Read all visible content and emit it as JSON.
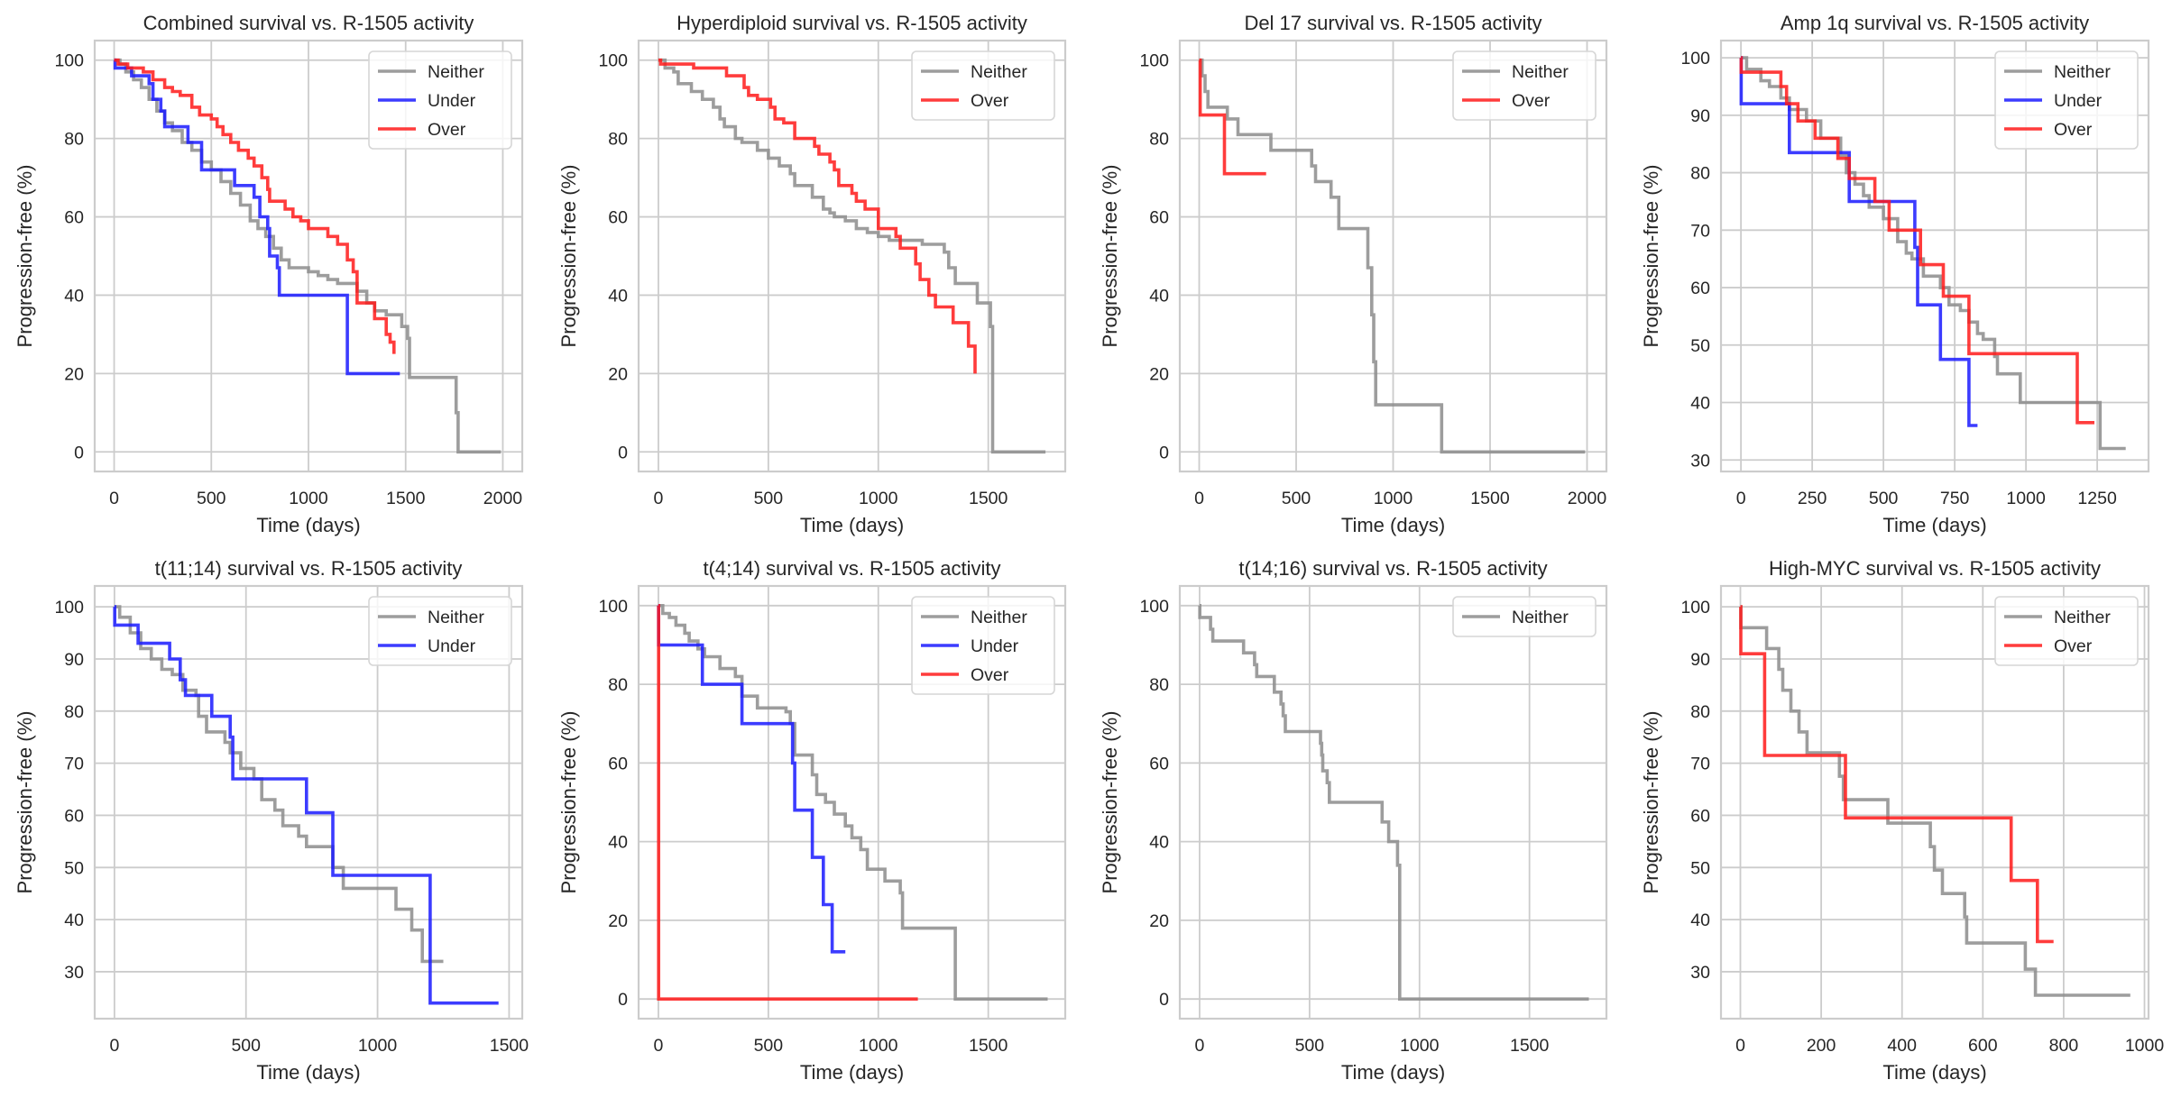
{
  "chart_data": [
    {
      "type": "line",
      "title": "Combined survival vs. R-1505 activity",
      "xlabel": "Time (days)",
      "ylabel": "Progression-free (%)",
      "xlim": [
        -100,
        2100
      ],
      "ylim": [
        -5,
        105
      ],
      "xticks": [
        0,
        500,
        1000,
        1500,
        2000
      ],
      "yticks": [
        0,
        20,
        40,
        60,
        80,
        100
      ],
      "grid": true,
      "legend": "top-right",
      "series": [
        {
          "name": "Neither",
          "color": "#8c8c8c",
          "x": [
            0,
            30,
            60,
            100,
            140,
            180,
            220,
            260,
            300,
            350,
            400,
            450,
            500,
            550,
            600,
            650,
            700,
            740,
            780,
            820,
            860,
            900,
            950,
            1000,
            1050,
            1100,
            1150,
            1200,
            1250,
            1300,
            1340,
            1400,
            1420,
            1480,
            1500,
            1510,
            1520,
            1750,
            1760,
            1770,
            1990
          ],
          "y": [
            100,
            99,
            97,
            95,
            93,
            90,
            87,
            84,
            82,
            79,
            77,
            74,
            72,
            69,
            66,
            63,
            59,
            57,
            55,
            52,
            49,
            47,
            47,
            46,
            45,
            44,
            43,
            43,
            41,
            38,
            36,
            35,
            35,
            32,
            32,
            29,
            19,
            19,
            10,
            0,
            0
          ]
        },
        {
          "name": "Under",
          "color": "#1a1aff",
          "x": [
            0,
            5,
            90,
            180,
            200,
            240,
            260,
            370,
            380,
            440,
            450,
            610,
            620,
            710,
            720,
            750,
            790,
            800,
            840,
            850,
            1190,
            1200,
            1470
          ],
          "y": [
            100,
            98,
            96,
            94,
            90,
            87,
            83,
            83,
            79,
            79,
            72,
            72,
            68,
            68,
            65,
            60,
            57,
            50,
            47,
            40,
            40,
            20,
            20
          ]
        },
        {
          "name": "Over",
          "color": "#ff1a1a",
          "x": [
            0,
            20,
            70,
            150,
            200,
            260,
            300,
            340,
            400,
            440,
            500,
            530,
            560,
            600,
            640,
            690,
            720,
            760,
            790,
            800,
            880,
            920,
            960,
            1000,
            1100,
            1150,
            1200,
            1230,
            1250,
            1340,
            1400,
            1420,
            1440
          ],
          "y": [
            100,
            99,
            98,
            97,
            95,
            93,
            92,
            91,
            88,
            86,
            85,
            83,
            81,
            79,
            77,
            75,
            73,
            70,
            67,
            64,
            62,
            60,
            59,
            57,
            55,
            53,
            49,
            46,
            38,
            34,
            30,
            28,
            25
          ]
        }
      ]
    },
    {
      "type": "line",
      "title": "Hyperdiploid survival vs. R-1505 activity",
      "xlabel": "Time (days)",
      "ylabel": "Progression-free (%)",
      "xlim": [
        -90,
        1850
      ],
      "ylim": [
        -5,
        105
      ],
      "xticks": [
        0,
        500,
        1000,
        1500
      ],
      "yticks": [
        0,
        20,
        40,
        60,
        80,
        100
      ],
      "grid": true,
      "legend": "top-right",
      "series": [
        {
          "name": "Neither",
          "color": "#8c8c8c",
          "x": [
            0,
            30,
            70,
            90,
            150,
            200,
            250,
            280,
            300,
            350,
            380,
            400,
            450,
            500,
            550,
            600,
            620,
            650,
            700,
            750,
            780,
            800,
            850,
            900,
            950,
            1000,
            1050,
            1100,
            1200,
            1300,
            1320,
            1350,
            1420,
            1450,
            1500,
            1510,
            1520,
            1760
          ],
          "y": [
            100,
            98,
            97,
            94,
            92,
            90,
            88,
            85,
            83,
            80,
            79,
            79,
            77,
            75,
            73,
            71,
            68,
            68,
            65,
            62,
            61,
            60,
            59,
            57,
            56,
            55,
            54,
            54,
            53,
            51,
            47,
            43,
            43,
            38,
            38,
            32,
            0,
            0
          ]
        },
        {
          "name": "Over",
          "color": "#ff1a1a",
          "x": [
            0,
            10,
            160,
            290,
            310,
            390,
            410,
            450,
            500,
            510,
            530,
            570,
            620,
            700,
            710,
            730,
            780,
            800,
            820,
            880,
            900,
            940,
            990,
            1000,
            1080,
            1100,
            1170,
            1190,
            1230,
            1260,
            1340,
            1400,
            1410,
            1440
          ],
          "y": [
            100,
            99,
            98,
            98,
            96,
            93,
            91,
            90,
            90,
            88,
            85,
            84,
            80,
            80,
            78,
            76,
            74,
            72,
            68,
            66,
            64,
            62,
            62,
            57,
            55,
            52,
            48,
            44,
            40,
            37,
            33,
            33,
            27,
            20
          ]
        }
      ]
    },
    {
      "type": "line",
      "title": "Del 17 survival vs. R-1505 activity",
      "xlabel": "Time (days)",
      "ylabel": "Progression-free (%)",
      "xlim": [
        -100,
        2100
      ],
      "ylim": [
        -5,
        105
      ],
      "xticks": [
        0,
        500,
        1000,
        1500,
        2000
      ],
      "yticks": [
        0,
        20,
        40,
        60,
        80,
        100
      ],
      "grid": true,
      "legend": "top-right",
      "series": [
        {
          "name": "Neither",
          "color": "#8c8c8c",
          "x": [
            0,
            15,
            30,
            45,
            145,
            200,
            370,
            580,
            600,
            680,
            720,
            870,
            890,
            900,
            910,
            1250,
            1990
          ],
          "y": [
            100,
            96,
            92,
            88,
            85,
            81,
            77,
            73,
            69,
            65,
            57,
            47,
            35,
            23,
            12,
            0,
            0
          ]
        },
        {
          "name": "Over",
          "color": "#ff1a1a",
          "x": [
            0,
            5,
            130,
            345
          ],
          "y": [
            100,
            86,
            71,
            71
          ]
        }
      ]
    },
    {
      "type": "line",
      "title": "Amp 1q survival vs. R-1505 activity",
      "xlabel": "Time (days)",
      "ylabel": "Progression-free (%)",
      "xlim": [
        -70,
        1430
      ],
      "ylim": [
        28,
        103
      ],
      "xticks": [
        0,
        250,
        500,
        750,
        1000,
        1250
      ],
      "yticks": [
        30,
        40,
        50,
        60,
        70,
        80,
        90,
        100
      ],
      "grid": true,
      "legend": "top-right",
      "series": [
        {
          "name": "Neither",
          "color": "#8c8c8c",
          "x": [
            0,
            20,
            70,
            100,
            140,
            170,
            230,
            280,
            350,
            370,
            400,
            430,
            450,
            500,
            550,
            580,
            600,
            640,
            700,
            730,
            770,
            800,
            830,
            850,
            890,
            900,
            980,
            1260,
            1350
          ],
          "y": [
            100,
            98,
            96,
            95,
            93,
            91,
            89,
            86,
            83,
            80,
            78,
            76,
            74,
            72,
            68,
            66,
            65,
            62,
            60,
            57,
            56,
            54,
            52,
            51,
            48,
            45,
            40,
            32,
            32
          ]
        },
        {
          "name": "Under",
          "color": "#1a1aff",
          "x": [
            0,
            1,
            170,
            380,
            610,
            620,
            700,
            800,
            830
          ],
          "y": [
            100,
            92,
            83.5,
            75,
            67,
            57,
            47.5,
            36,
            36
          ]
        },
        {
          "name": "Over",
          "color": "#ff1a1a",
          "x": [
            0,
            1,
            140,
            160,
            200,
            260,
            340,
            380,
            470,
            520,
            630,
            710,
            800,
            1180,
            1240
          ],
          "y": [
            100,
            97.5,
            95,
            92,
            89,
            86,
            82.5,
            79,
            75,
            70,
            64,
            58.5,
            48.5,
            36.5,
            36.5
          ]
        }
      ]
    },
    {
      "type": "line",
      "title": "t(11;14) survival vs. R-1505 activity",
      "xlabel": "Time (days)",
      "ylabel": "Progression-free (%)",
      "xlim": [
        -75,
        1550
      ],
      "ylim": [
        21,
        104
      ],
      "xticks": [
        0,
        500,
        1000,
        1500
      ],
      "yticks": [
        30,
        40,
        50,
        60,
        70,
        80,
        90,
        100
      ],
      "grid": true,
      "legend": "top-right",
      "series": [
        {
          "name": "Neither",
          "color": "#8c8c8c",
          "x": [
            0,
            20,
            60,
            100,
            140,
            180,
            220,
            260,
            310,
            320,
            350,
            420,
            440,
            480,
            530,
            560,
            610,
            640,
            700,
            730,
            830,
            870,
            1070,
            1130,
            1170,
            1250
          ],
          "y": [
            100,
            98,
            95,
            92,
            90,
            88,
            87,
            84,
            83,
            79,
            76,
            74,
            72,
            69,
            67,
            63,
            61,
            58,
            56,
            54,
            50,
            46,
            42,
            38,
            32,
            32
          ]
        },
        {
          "name": "Under",
          "color": "#1a1aff",
          "x": [
            0,
            1,
            90,
            210,
            250,
            270,
            370,
            440,
            450,
            730,
            830,
            1200,
            1460
          ],
          "y": [
            100,
            96.5,
            93,
            90,
            86,
            83,
            79,
            75,
            67,
            60.5,
            48.5,
            24,
            24
          ]
        }
      ]
    },
    {
      "type": "line",
      "title": "t(4;14) survival vs. R-1505 activity",
      "xlabel": "Time (days)",
      "ylabel": "Progression-free (%)",
      "xlim": [
        -90,
        1850
      ],
      "ylim": [
        -5,
        105
      ],
      "xticks": [
        0,
        500,
        1000,
        1500
      ],
      "yticks": [
        0,
        20,
        40,
        60,
        80,
        100
      ],
      "grid": true,
      "legend": "top-right",
      "series": [
        {
          "name": "Neither",
          "color": "#8c8c8c",
          "x": [
            0,
            20,
            50,
            80,
            120,
            140,
            180,
            210,
            280,
            350,
            380,
            450,
            580,
            600,
            620,
            700,
            720,
            760,
            800,
            850,
            880,
            920,
            950,
            1030,
            1100,
            1110,
            1350,
            1770
          ],
          "y": [
            100,
            98,
            97,
            95,
            93,
            91,
            89,
            87,
            84,
            82,
            77,
            74,
            73,
            70,
            62,
            57,
            52,
            50,
            47,
            44,
            41,
            38,
            33,
            30,
            27,
            18,
            0,
            0
          ]
        },
        {
          "name": "Under",
          "color": "#1a1aff",
          "x": [
            0,
            1,
            200,
            380,
            610,
            620,
            700,
            750,
            790,
            850
          ],
          "y": [
            100,
            90,
            80,
            70,
            60,
            48,
            36,
            24,
            12,
            12
          ]
        },
        {
          "name": "Over",
          "color": "#ff1a1a",
          "x": [
            0,
            1,
            1180
          ],
          "y": [
            100,
            0,
            0
          ]
        }
      ]
    },
    {
      "type": "line",
      "title": "t(14;16) survival vs. R-1505 activity",
      "xlabel": "Time (days)",
      "ylabel": "Progression-free (%)",
      "xlim": [
        -90,
        1850
      ],
      "ylim": [
        -5,
        105
      ],
      "xticks": [
        0,
        500,
        1000,
        1500
      ],
      "yticks": [
        0,
        20,
        40,
        60,
        80,
        100
      ],
      "grid": true,
      "legend": "top-right",
      "series": [
        {
          "name": "Neither",
          "color": "#8c8c8c",
          "x": [
            0,
            1,
            50,
            60,
            200,
            250,
            260,
            340,
            370,
            380,
            390,
            550,
            555,
            560,
            580,
            590,
            830,
            860,
            900,
            910,
            1770
          ],
          "y": [
            100,
            97,
            94,
            91,
            88,
            85,
            82,
            78,
            75,
            72,
            68,
            65,
            62,
            58,
            55,
            50,
            45,
            40,
            34,
            0,
            0
          ]
        }
      ]
    },
    {
      "type": "line",
      "title": "High-MYC survival vs. R-1505 activity",
      "xlabel": "Time (days)",
      "ylabel": "Progression-free (%)",
      "xlim": [
        -48,
        1010
      ],
      "ylim": [
        21,
        104
      ],
      "xticks": [
        0,
        200,
        400,
        600,
        800,
        1000
      ],
      "yticks": [
        30,
        40,
        50,
        60,
        70,
        80,
        90,
        100
      ],
      "grid": true,
      "legend": "top-right",
      "series": [
        {
          "name": "Neither",
          "color": "#8c8c8c",
          "x": [
            0,
            1,
            65,
            95,
            105,
            125,
            145,
            165,
            245,
            255,
            365,
            470,
            480,
            500,
            555,
            560,
            705,
            730,
            965
          ],
          "y": [
            100,
            96,
            92,
            88,
            84,
            80,
            76,
            72,
            67.5,
            63,
            58.5,
            54,
            49.5,
            45,
            40.5,
            35.5,
            30.5,
            25.5,
            25.5
          ]
        },
        {
          "name": "Over",
          "color": "#ff1a1a",
          "x": [
            0,
            1,
            60,
            260,
            670,
            735,
            775
          ],
          "y": [
            100,
            91,
            71.5,
            59.5,
            47.5,
            35.8,
            35.8
          ]
        }
      ]
    }
  ]
}
